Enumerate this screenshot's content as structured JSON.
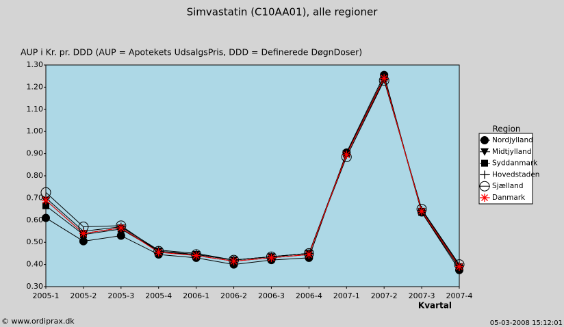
{
  "chart_data": {
    "type": "line",
    "title": "Simvastatin (C10AA01), alle regioner",
    "y_label": "AUP i Kr. pr. DDD (AUP = Apotekets UdsalgsPris, DDD = Definerede DøgnDoser)",
    "x_label": "Kvartal",
    "legend_title": "Region",
    "legend_position": "right",
    "source": "© www.ordiprax.dk",
    "timestamp": "05-03-2008 15:12:01",
    "categories": [
      "2005-1",
      "2005-2",
      "2005-3",
      "2005-4",
      "2006-1",
      "2006-2",
      "2006-3",
      "2006-4",
      "2007-1",
      "2007-2",
      "2007-3",
      "2007-4"
    ],
    "ylim": [
      0.3,
      1.3
    ],
    "yticks": [
      {
        "value": 0.3,
        "label": "0.30"
      },
      {
        "value": 0.4,
        "label": "0.40"
      },
      {
        "value": 0.5,
        "label": "0.50"
      },
      {
        "value": 0.6,
        "label": "0.60"
      },
      {
        "value": 0.7,
        "label": "0.70"
      },
      {
        "value": 0.8,
        "label": "0.80"
      },
      {
        "value": 0.9,
        "label": "0.90"
      },
      {
        "value": 1.0,
        "label": "1.00"
      },
      {
        "value": 1.1,
        "label": "1.10"
      },
      {
        "value": 1.2,
        "label": "1.20"
      },
      {
        "value": 1.3,
        "label": "1.30"
      }
    ],
    "plot_background": "#add8e6",
    "series": [
      {
        "name": "Nordjylland",
        "color": "#000000",
        "marker": "circle",
        "values": [
          0.61,
          0.505,
          0.53,
          0.445,
          0.43,
          0.4,
          0.42,
          0.43,
          0.905,
          1.255,
          0.635,
          0.375
        ]
      },
      {
        "name": "Midtjylland",
        "color": "#000000",
        "marker": "triangle-down",
        "values": [
          0.69,
          0.54,
          0.565,
          0.46,
          0.445,
          0.42,
          0.435,
          0.45,
          0.9,
          1.245,
          0.64,
          0.39
        ]
      },
      {
        "name": "Syddanmark",
        "color": "#000000",
        "marker": "square",
        "values": [
          0.665,
          0.535,
          0.56,
          0.46,
          0.44,
          0.415,
          0.43,
          0.445,
          0.9,
          1.24,
          0.635,
          0.385
        ]
      },
      {
        "name": "Hovedstaden",
        "color": "#000000",
        "marker": "plus",
        "values": [
          0.7,
          0.55,
          0.57,
          0.465,
          0.45,
          0.42,
          0.435,
          0.45,
          0.895,
          1.235,
          0.645,
          0.395
        ]
      },
      {
        "name": "Sjælland",
        "color": "#000000",
        "marker": "open-circle",
        "values": [
          0.725,
          0.57,
          0.575,
          0.46,
          0.445,
          0.42,
          0.435,
          0.45,
          0.885,
          1.23,
          0.65,
          0.4
        ]
      },
      {
        "name": "Danmark",
        "color": "#ff0000",
        "marker": "star",
        "values": [
          0.69,
          0.54,
          0.565,
          0.455,
          0.44,
          0.415,
          0.43,
          0.445,
          0.895,
          1.24,
          0.64,
          0.39
        ]
      }
    ]
  }
}
